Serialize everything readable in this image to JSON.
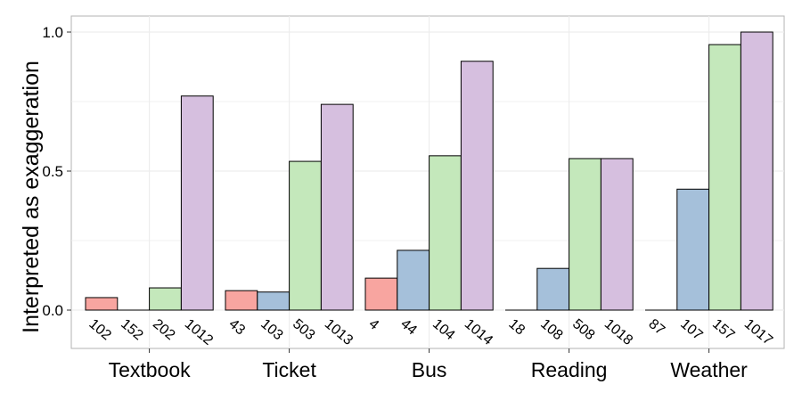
{
  "chart_data": {
    "type": "bar",
    "title": "",
    "xlabel": "",
    "ylabel": "Interpreted as exaggeration",
    "ylim": [
      -0.13,
      1.05
    ],
    "yticks": [
      "0.0",
      "0.5",
      "1.0"
    ],
    "ytick_values": [
      0.0,
      0.5,
      1.0
    ],
    "grid": true,
    "categories": [
      "Textbook",
      "Ticket",
      "Bus",
      "Reading",
      "Weather"
    ],
    "series_colors": [
      "#F8A5A0",
      "#A5C0DA",
      "#C4E8BB",
      "#D6BFDF"
    ],
    "groups": [
      {
        "category": "Textbook",
        "labels": [
          "102",
          "152",
          "202",
          "1012"
        ],
        "values": [
          0.045,
          0.0,
          0.08,
          0.77
        ]
      },
      {
        "category": "Ticket",
        "labels": [
          "43",
          "103",
          "503",
          "1013"
        ],
        "values": [
          0.07,
          0.065,
          0.535,
          0.74
        ]
      },
      {
        "category": "Bus",
        "labels": [
          "4",
          "44",
          "104",
          "1014"
        ],
        "values": [
          0.115,
          0.215,
          0.555,
          0.895
        ]
      },
      {
        "category": "Reading",
        "labels": [
          "18",
          "108",
          "508",
          "1018"
        ],
        "values": [
          0.0,
          0.15,
          0.545,
          0.545
        ]
      },
      {
        "category": "Weather",
        "labels": [
          "87",
          "107",
          "157",
          "1017"
        ],
        "values": [
          0.0,
          0.435,
          0.955,
          1.0
        ]
      }
    ]
  }
}
